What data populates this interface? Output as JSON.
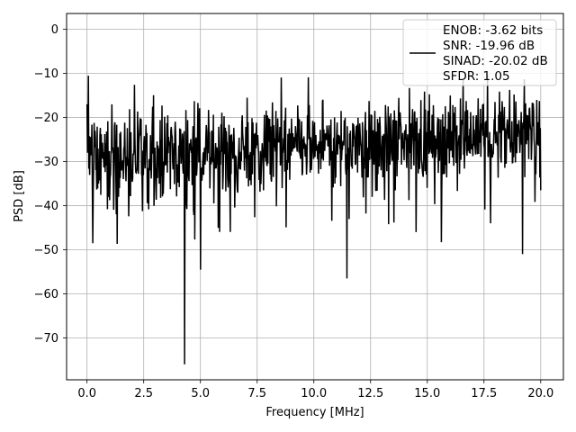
{
  "chart_data": {
    "type": "line",
    "title": "",
    "xlabel": "Frequency [MHz]",
    "ylabel": "PSD [dB]",
    "xlim": [
      -0.9,
      21.0
    ],
    "ylim": [
      -79.5,
      3.6
    ],
    "xticks": [
      0.0,
      2.5,
      5.0,
      7.5,
      10.0,
      12.5,
      15.0,
      17.5,
      20.0
    ],
    "xtick_labels": [
      "0.0",
      "2.5",
      "5.0",
      "7.5",
      "10.0",
      "12.5",
      "15.0",
      "17.5",
      "20.0"
    ],
    "yticks": [
      0,
      -10,
      -20,
      -30,
      -40,
      -50,
      -60,
      -70
    ],
    "ytick_labels": [
      "0",
      "−10",
      "−20",
      "−30",
      "−40",
      "−50",
      "−60",
      "−70"
    ],
    "grid": true,
    "legend_position": "top-right",
    "series": [
      {
        "name": "ENOB: -3.62 bits\nSNR: -19.96 dB\nSINAD: -20.02 dB\nSFDR: 1.05",
        "color": "#000000",
        "x_range": [
          0.0,
          20.0
        ],
        "n_points": 1024,
        "trend_start": -30,
        "trend_end": -23,
        "noise_amplitude": 8,
        "notable_points": [
          {
            "x": 0.0,
            "y": -17
          },
          {
            "x": 0.05,
            "y": -10.5
          },
          {
            "x": 0.25,
            "y": -48.5
          },
          {
            "x": 4.3,
            "y": -76
          },
          {
            "x": 5.0,
            "y": -54.5
          },
          {
            "x": 11.45,
            "y": -56.5
          },
          {
            "x": 14.5,
            "y": -46
          },
          {
            "x": 17.8,
            "y": -44
          },
          {
            "x": 19.2,
            "y": -51
          },
          {
            "x": 20.0,
            "y": -36.5
          }
        ]
      }
    ],
    "legend_lines": [
      "ENOB: -3.62 bits",
      "SNR: -19.96 dB",
      "SINAD: -20.02 dB",
      "SFDR: 1.05"
    ]
  }
}
